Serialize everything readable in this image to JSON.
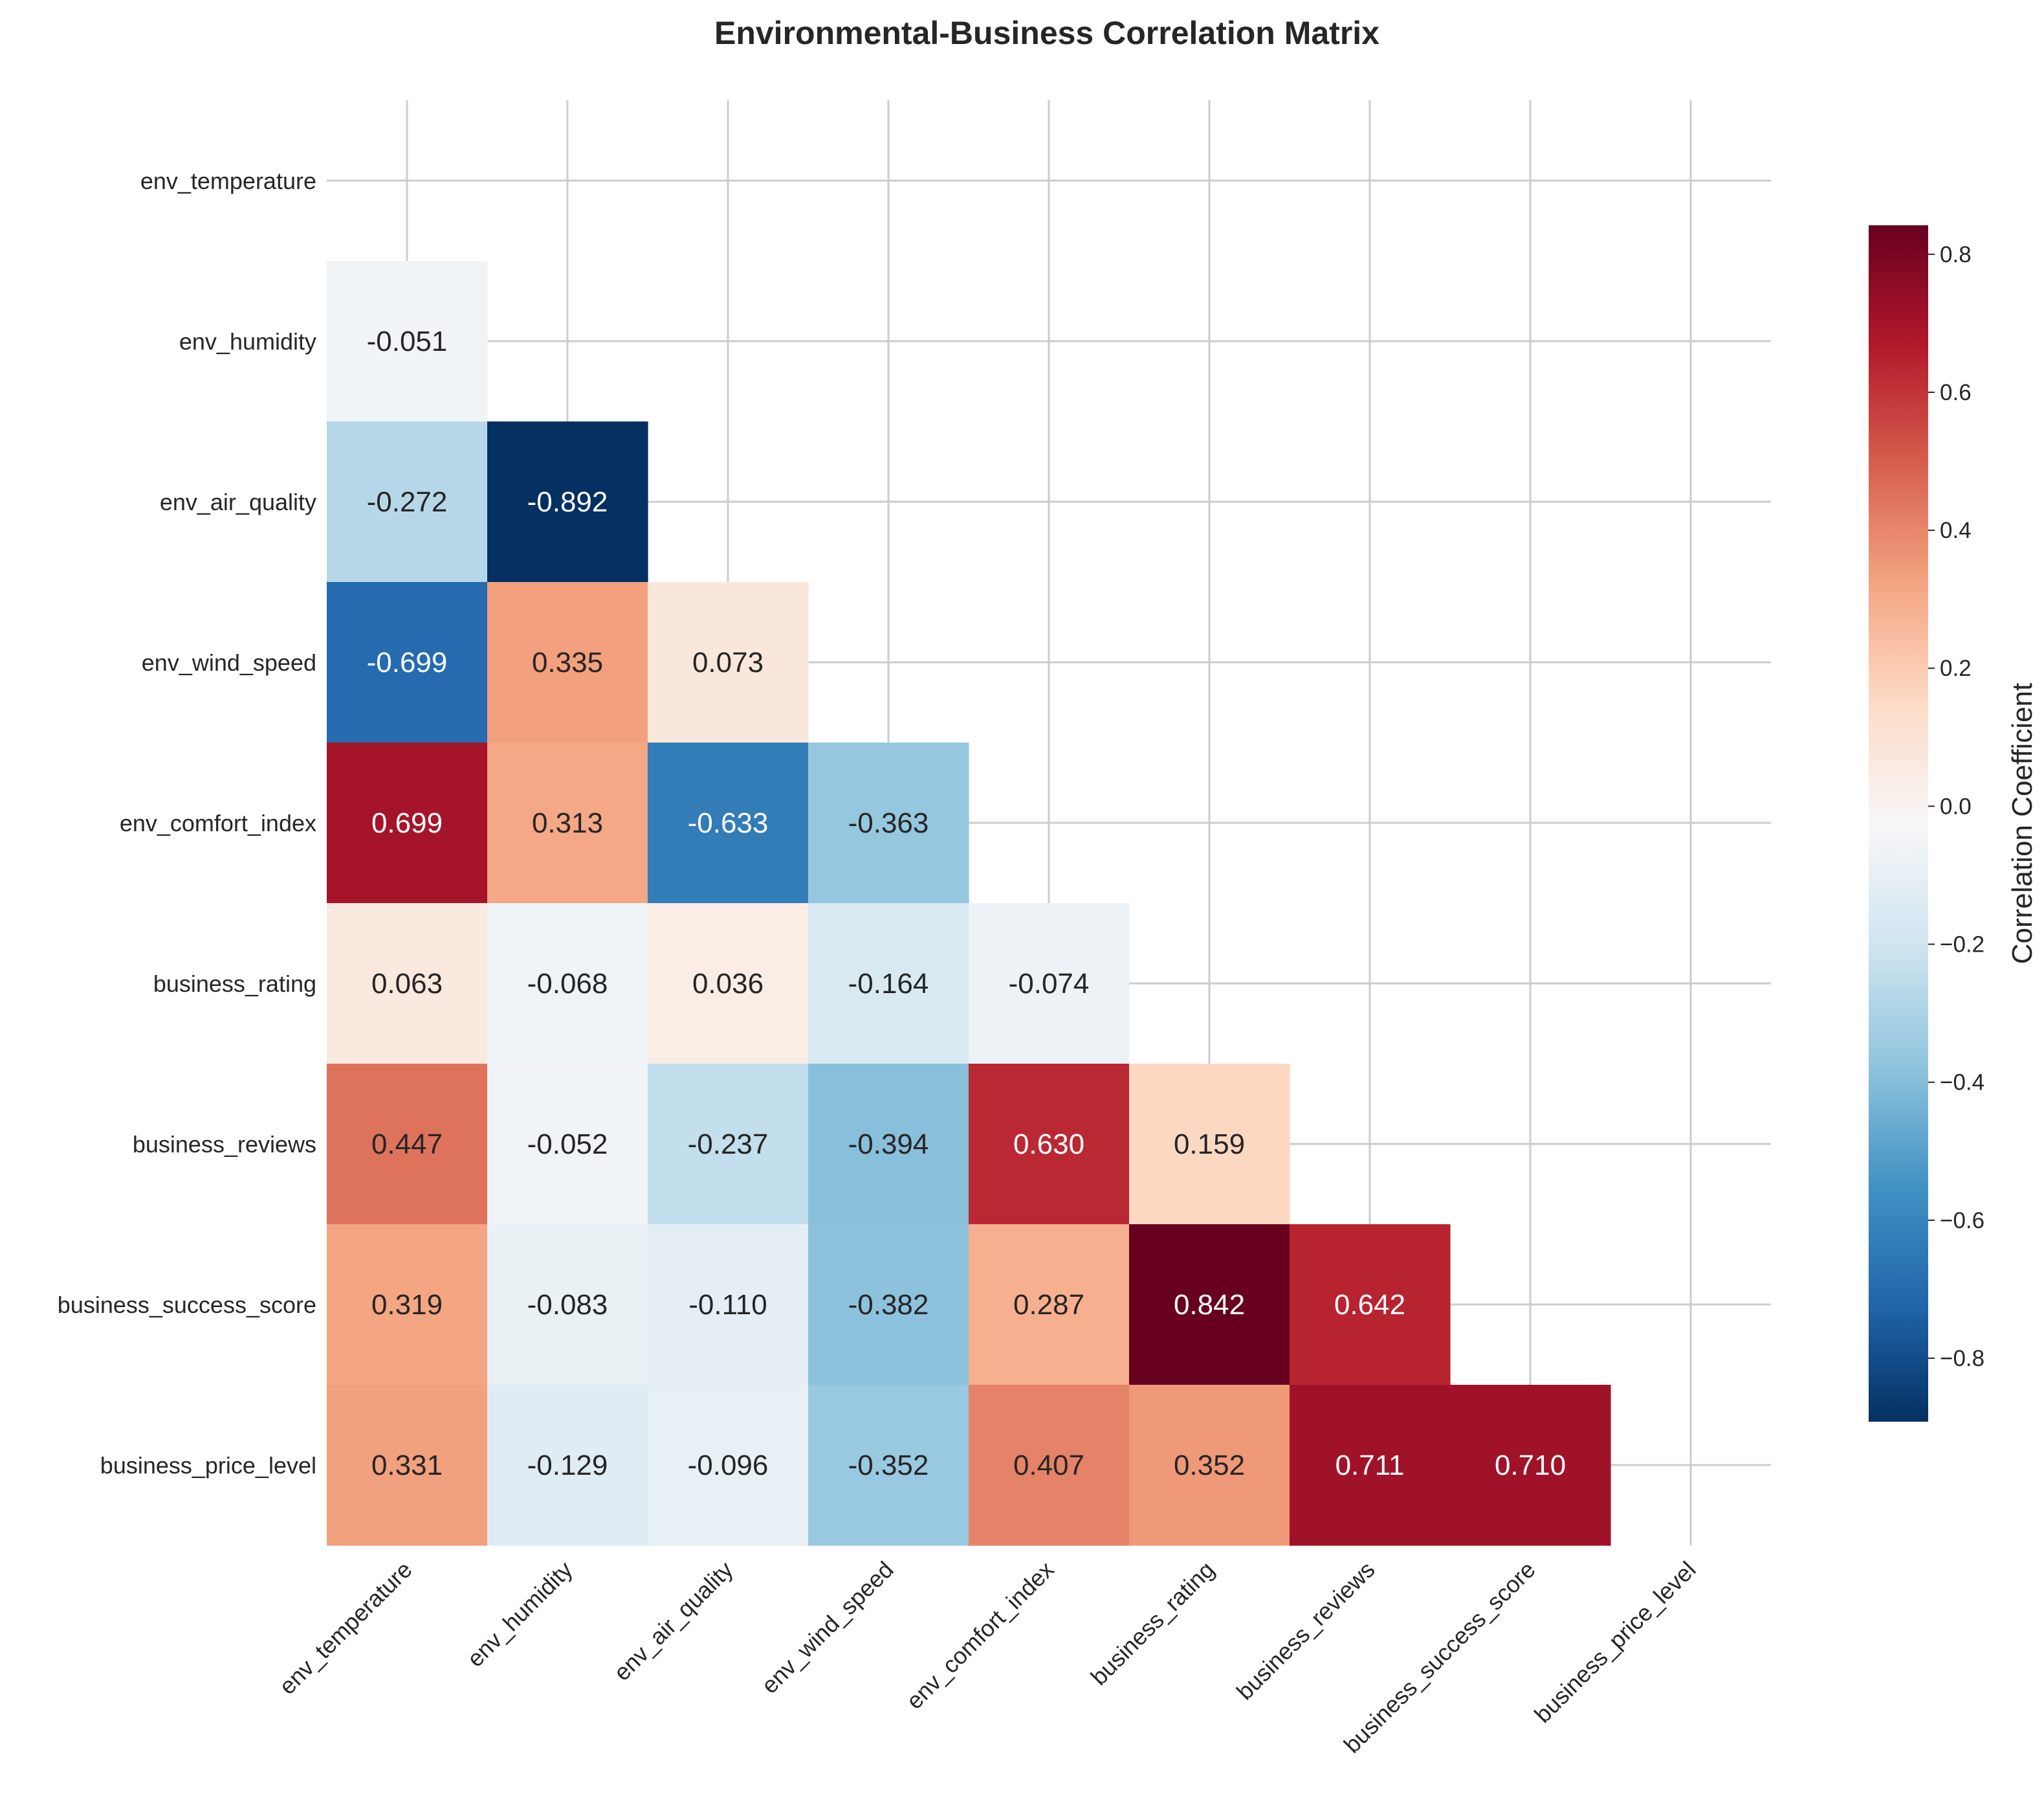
{
  "chart_data": {
    "type": "heatmap",
    "title": "Environmental-Business Correlation Matrix",
    "labels": [
      "env_temperature",
      "env_humidity",
      "env_air_quality",
      "env_wind_speed",
      "env_comfort_index",
      "business_rating",
      "business_reviews",
      "business_success_score",
      "business_price_level"
    ],
    "mask": "upper-triangle-and-diagonal",
    "values": [
      [
        null,
        null,
        null,
        null,
        null,
        null,
        null,
        null,
        null
      ],
      [
        -0.051,
        null,
        null,
        null,
        null,
        null,
        null,
        null,
        null
      ],
      [
        -0.272,
        -0.892,
        null,
        null,
        null,
        null,
        null,
        null,
        null
      ],
      [
        -0.699,
        0.335,
        0.073,
        null,
        null,
        null,
        null,
        null,
        null
      ],
      [
        0.699,
        0.313,
        -0.633,
        -0.363,
        null,
        null,
        null,
        null,
        null
      ],
      [
        0.063,
        -0.068,
        0.036,
        -0.164,
        -0.074,
        null,
        null,
        null,
        null
      ],
      [
        0.447,
        -0.052,
        -0.237,
        -0.394,
        0.63,
        0.159,
        null,
        null,
        null
      ],
      [
        0.319,
        -0.083,
        -0.11,
        -0.382,
        0.287,
        0.842,
        0.642,
        null,
        null
      ],
      [
        0.331,
        -0.129,
        -0.096,
        -0.352,
        0.407,
        0.352,
        0.711,
        0.71,
        null
      ]
    ],
    "value_labels": [
      [],
      [
        "-0.051"
      ],
      [
        "-0.272",
        "-0.892"
      ],
      [
        "-0.699",
        "0.335",
        "0.073"
      ],
      [
        "0.699",
        "0.313",
        "-0.633",
        "-0.363"
      ],
      [
        "0.063",
        "-0.068",
        "0.036",
        "-0.164",
        "-0.074"
      ],
      [
        "0.447",
        "-0.052",
        "-0.237",
        "-0.394",
        "0.630",
        "0.159"
      ],
      [
        "0.319",
        "-0.083",
        "-0.110",
        "-0.382",
        "0.287",
        "0.842",
        "0.642"
      ],
      [
        "0.331",
        "-0.129",
        "-0.096",
        "-0.352",
        "0.407",
        "0.352",
        "0.711",
        "0.710"
      ]
    ],
    "colormap": "RdBu_r",
    "vmin": -0.892,
    "vmax": 0.842,
    "grid": true,
    "colorbar": {
      "label": "Correlation Coefficient",
      "ticks": [
        0.8,
        0.6,
        0.4,
        0.2,
        0.0,
        -0.2,
        -0.4,
        -0.6,
        -0.8
      ],
      "tick_labels": [
        "0.8",
        "0.6",
        "0.4",
        "0.2",
        "0.0",
        "−0.2",
        "−0.4",
        "−0.6",
        "−0.8"
      ],
      "placement": "right"
    }
  }
}
